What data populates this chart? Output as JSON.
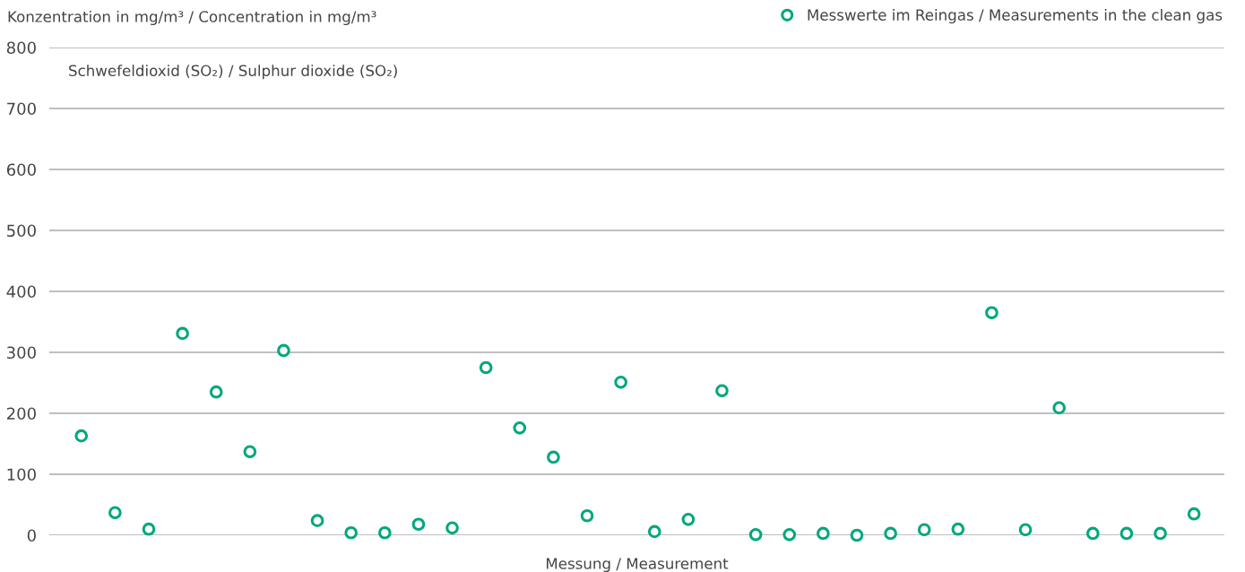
{
  "chart_data": {
    "type": "scatter",
    "ylabel": "Konzentration in mg/m³ / Concentration in mg/m³",
    "xlabel": "Messung / Measurement",
    "annotations": [
      "Schwefeldioxid (SO₂) / Sulphur dioxide (SO₂)"
    ],
    "categories": [
      null,
      null,
      null,
      null,
      null,
      null,
      null,
      null,
      null,
      null,
      null,
      null,
      null,
      null,
      null,
      null,
      null,
      null,
      null,
      null,
      null,
      null,
      null,
      null,
      null,
      null,
      null,
      null,
      null,
      null,
      null,
      null,
      null,
      null
    ],
    "series": [
      {
        "name": "Messwerte im Reingas / Measurements in the clean gas",
        "color": "#00a87e",
        "values": [
          163,
          37,
          10,
          331,
          235,
          137,
          303,
          24,
          4,
          4,
          18,
          12,
          275,
          176,
          128,
          32,
          251,
          6,
          26,
          237,
          1,
          1,
          3,
          0,
          3,
          9,
          10,
          365,
          9,
          209,
          3,
          3,
          3,
          35
        ]
      }
    ],
    "ylim": [
      0,
      800
    ],
    "yticks": [
      0,
      100,
      200,
      300,
      400,
      500,
      600,
      700,
      800
    ],
    "grid": "y",
    "legend": "top right",
    "marker": "circle",
    "tick_labels": "y"
  }
}
